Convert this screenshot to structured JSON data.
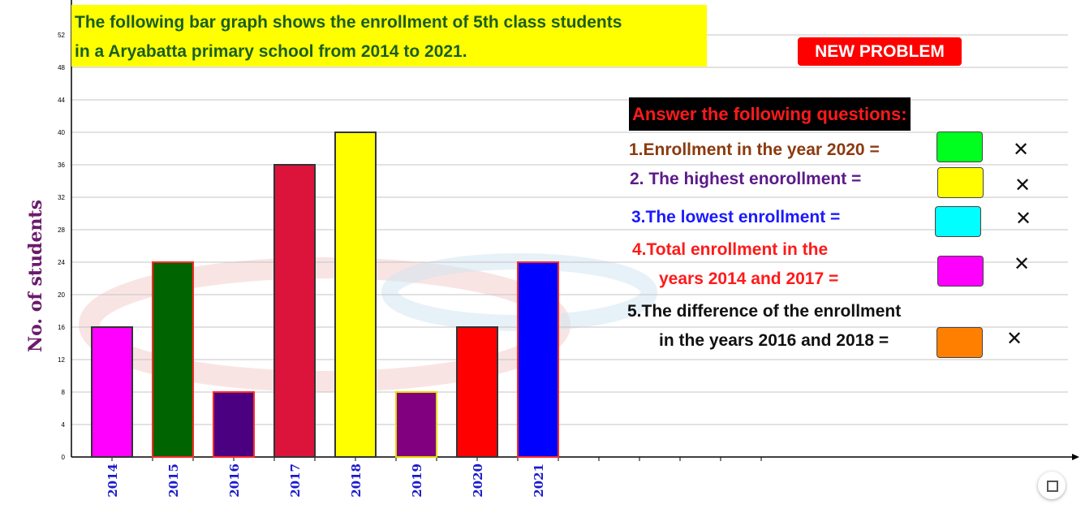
{
  "title_lines": [
    "The following bar graph shows the enrollment of 5th class students",
    "in a Aryabatta primary school from 2014 to 2021."
  ],
  "new_problem_label": "NEW PROBLEM",
  "y_axis_label": "No. of students",
  "questions_header": "Answer the following questions:",
  "questions": [
    {
      "lines": [
        "1.Enrollment in the year 2020 ="
      ],
      "color": "#8b3a0f",
      "answer_color": "#00ff1e",
      "mark": "✕"
    },
    {
      "lines": [
        "2. The highest enorollment ="
      ],
      "color": "#5b1a8b",
      "answer_color": "#ffff00",
      "mark": "✕"
    },
    {
      "lines": [
        "3.The lowest enrollment ="
      ],
      "color": "#1a1aff",
      "answer_color": "#00ffff",
      "mark": "✕"
    },
    {
      "lines": [
        "4.Total enrollment in the",
        "years 2014 and 2017 ="
      ],
      "color": "#ff1a1a",
      "answer_color": "#ff00ff",
      "mark": "✕"
    },
    {
      "lines": [
        "5.The difference of the enrollment",
        "in the years 2016 and 2018 ="
      ],
      "color": "#111111",
      "answer_color": "#ff8000",
      "mark": "✕"
    }
  ],
  "chart_data": {
    "type": "bar",
    "categories": [
      "2014",
      "2015",
      "2016",
      "2017",
      "2018",
      "2019",
      "2020",
      "2021"
    ],
    "values": [
      16,
      24,
      8,
      36,
      40,
      8,
      16,
      24
    ],
    "bar_colors": [
      "#ff00ff",
      "#006400",
      "#4b0082",
      "#dc143c",
      "#ffff00",
      "#800080",
      "#ff0000",
      "#0000ff"
    ],
    "border_colors": [
      "#333333",
      "#ff2a2a",
      "#ff2a2a",
      "#333333",
      "#333333",
      "#e6d800",
      "#333333",
      "#ff2a2a"
    ],
    "ylabel": "No. of students",
    "ylim": [
      0,
      52
    ],
    "yticks": [
      0,
      4,
      8,
      12,
      16,
      20,
      24,
      28,
      32,
      36,
      40,
      44,
      48,
      52
    ],
    "grid": true,
    "tick_label_color": "#1a1acc"
  }
}
